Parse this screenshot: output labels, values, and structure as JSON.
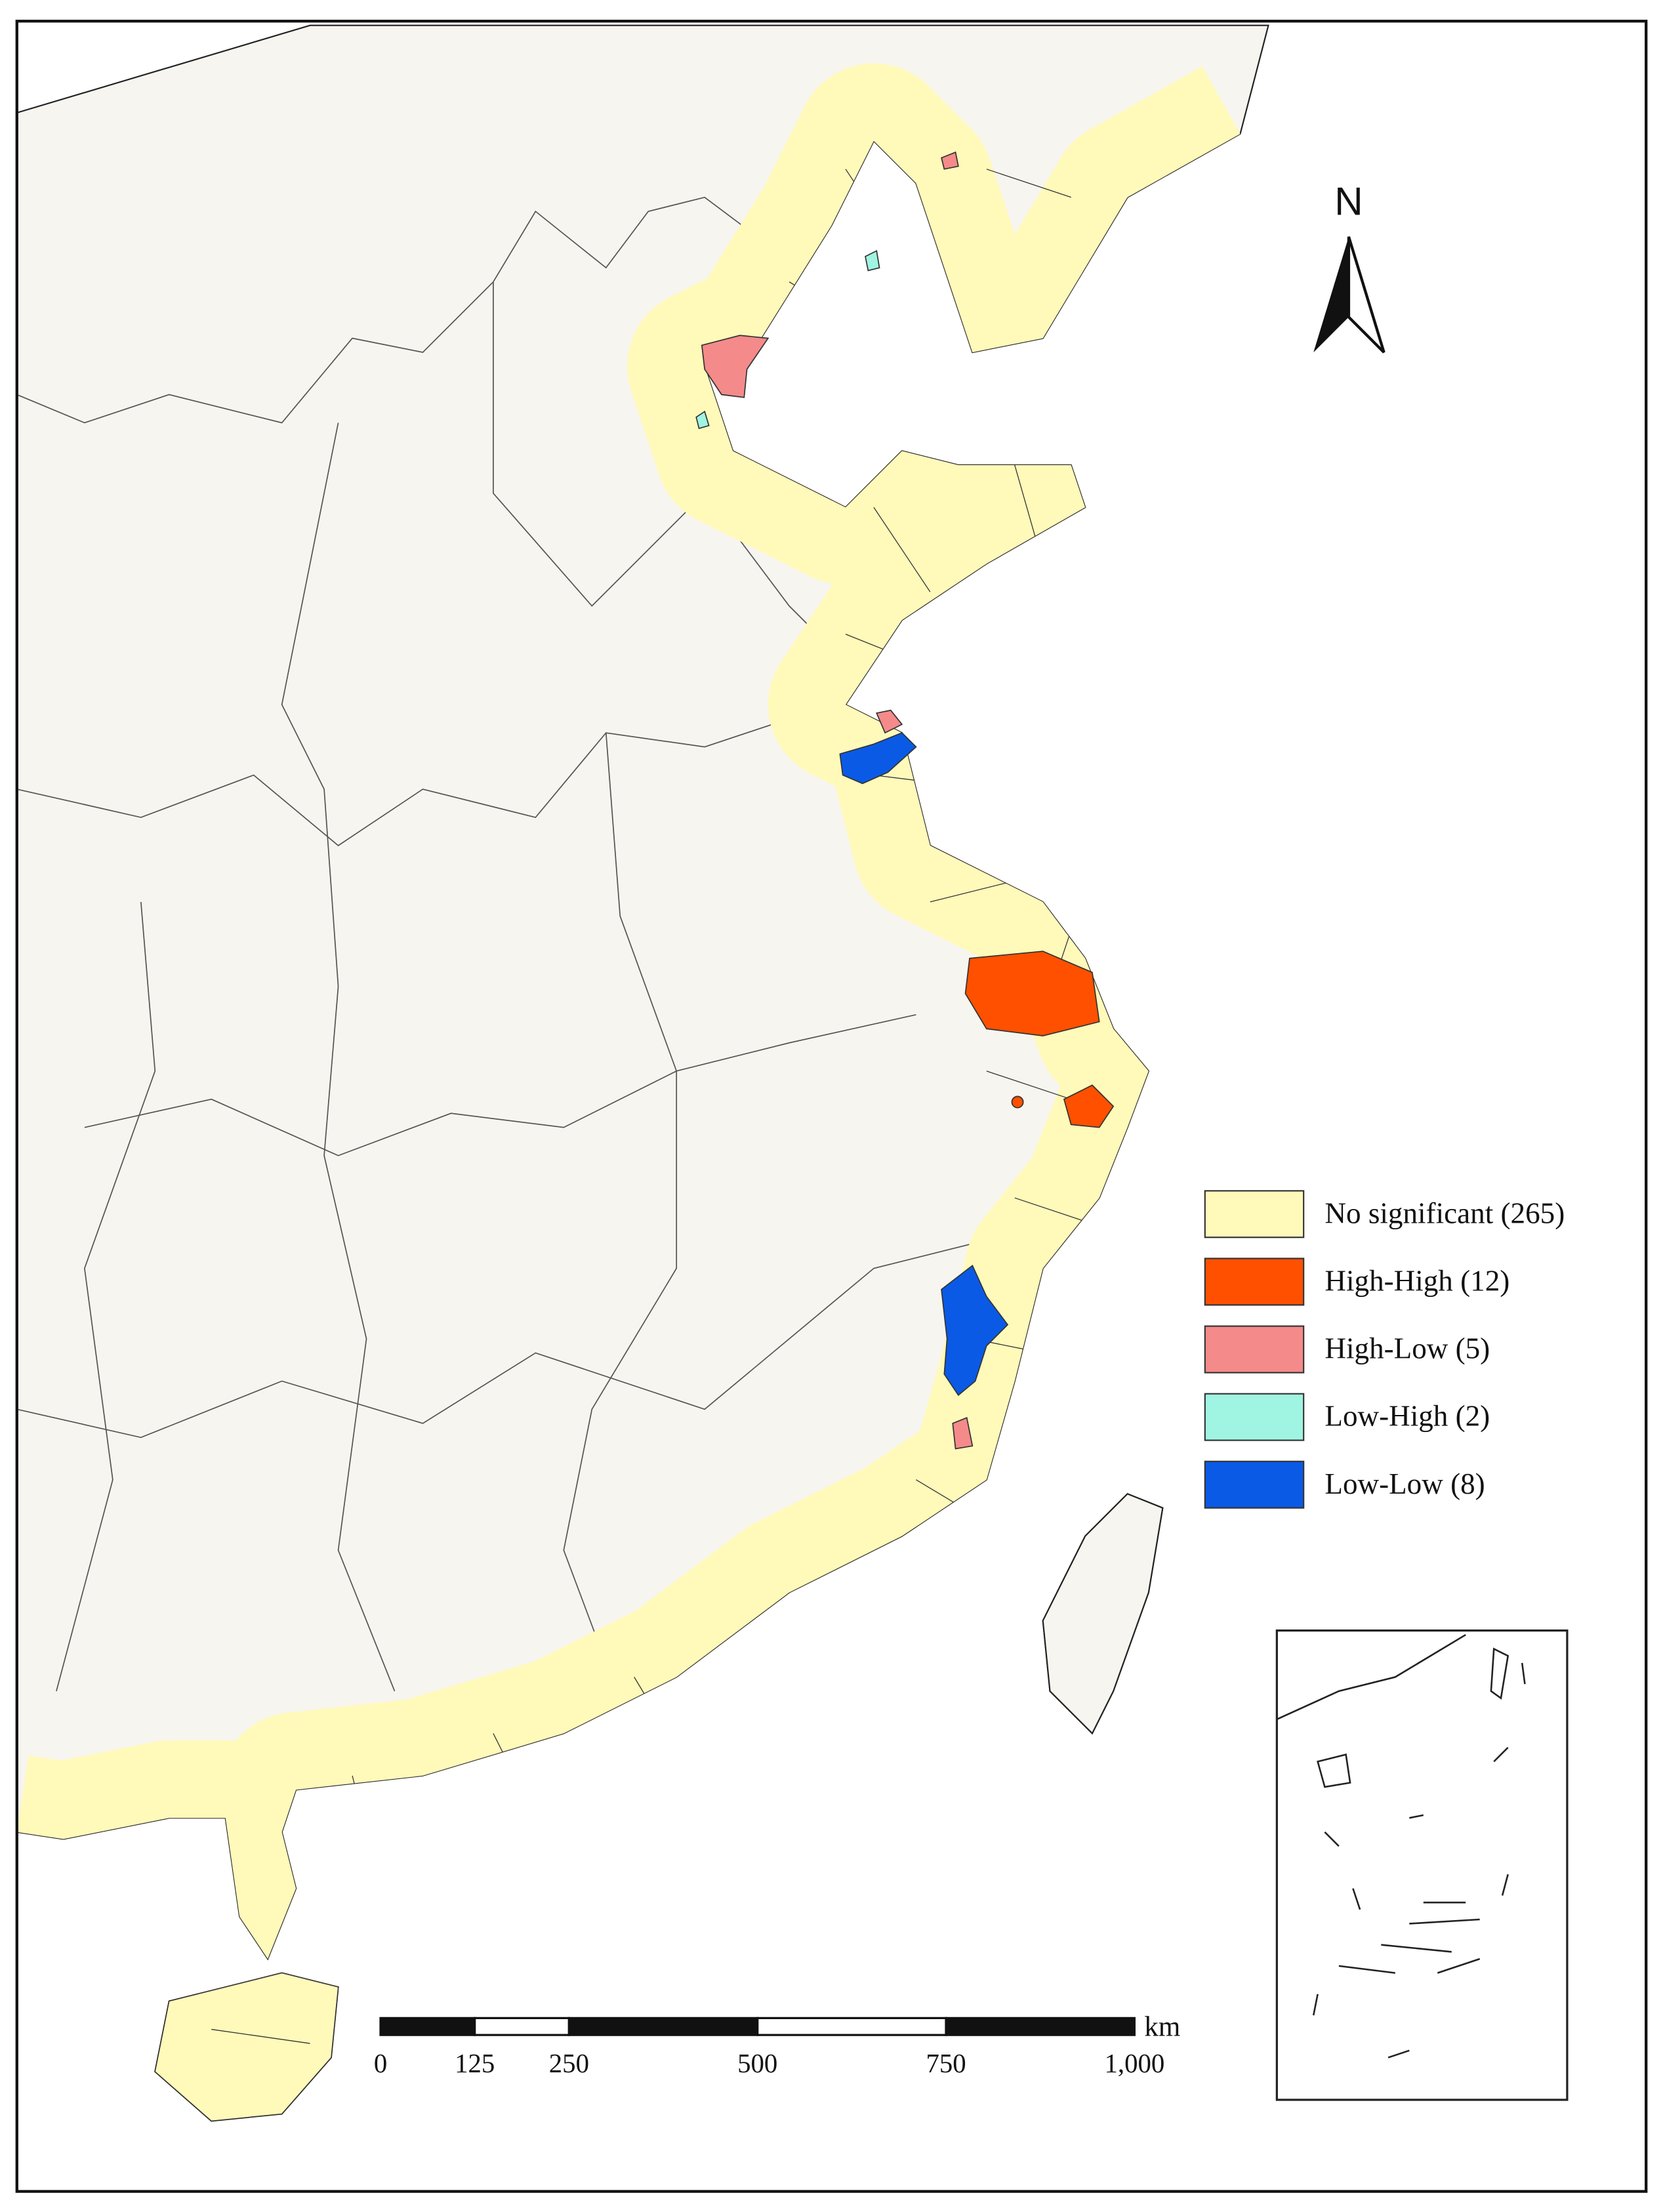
{
  "north_label": "N",
  "legend": {
    "items": [
      {
        "label": "No significant (265)",
        "color": "#fffaba"
      },
      {
        "label": "High-High (12)",
        "color": "#ff5000"
      },
      {
        "label": "High-Low (5)",
        "color": "#f58a8a"
      },
      {
        "label": "Low-High (2)",
        "color": "#9ff5e1"
      },
      {
        "label": "Low-Low (8)",
        "color": "#0a5ae6"
      }
    ]
  },
  "scale": {
    "unit": "km",
    "ticks": [
      0,
      125,
      250,
      500,
      750,
      {
        "value": 1000,
        "label": "1,000"
      }
    ]
  }
}
